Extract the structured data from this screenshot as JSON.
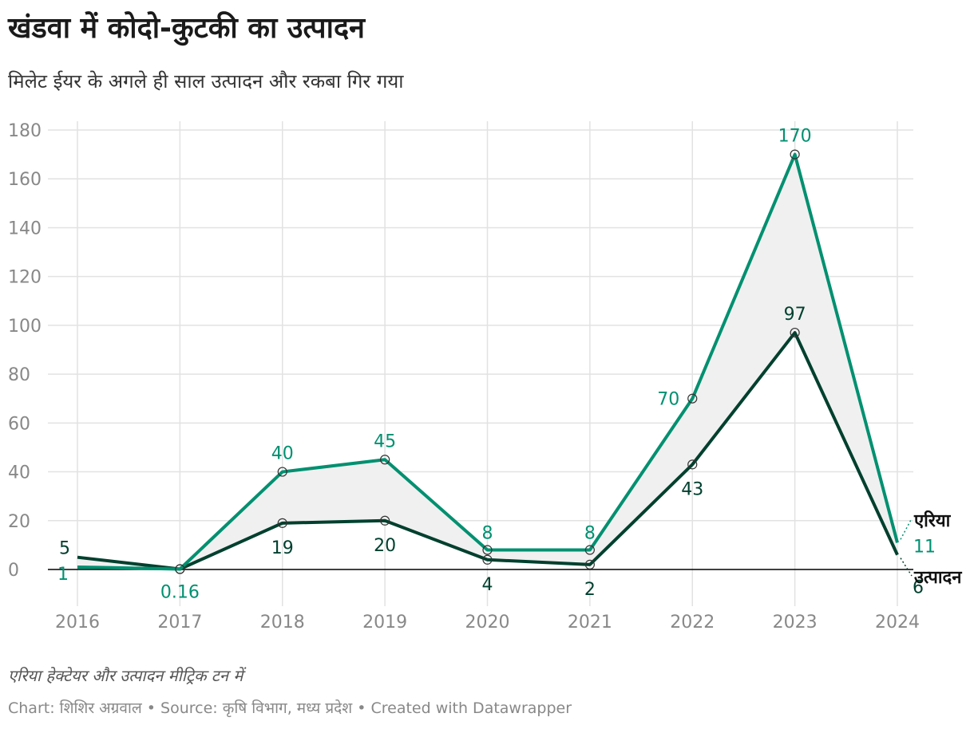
{
  "title": "खंडवा में कोदो-कुटकी का उत्पादन",
  "subtitle": "मिलेट ईयर के अगले ही साल उत्पादन और रकबा गिर गया",
  "note": "एरिया हेक्टेयर और उत्पादन मीट्रिक टन में",
  "credits": "Chart: शिशिर अग्रवाल • Source: कृषि विभाग, मध्य प्रदेश • Created with Datawrapper",
  "colors": {
    "area": "#009070",
    "production": "#00402e",
    "fill": "#f0f0f0",
    "grid": "#e2e2e2",
    "tick": "#888888"
  },
  "chart_data": {
    "type": "line",
    "x": [
      "2016",
      "2017",
      "2018",
      "2019",
      "2020",
      "2021",
      "2022",
      "2023",
      "2024"
    ],
    "ylim": [
      0,
      180
    ],
    "yticks": [
      "0",
      "20",
      "40",
      "60",
      "80",
      "100",
      "120",
      "140",
      "160",
      "180"
    ],
    "grid": true,
    "legend": "inline-right",
    "series": [
      {
        "name": "एरिया",
        "key": "area",
        "values": [
          1,
          0.16,
          40,
          45,
          8,
          8,
          70,
          170,
          11
        ],
        "labels": [
          "1",
          "0.16",
          "40",
          "45",
          "8",
          "8",
          "70",
          "170",
          "11"
        ]
      },
      {
        "name": "उत्पादन",
        "key": "production",
        "values": [
          5,
          0.16,
          19,
          20,
          4,
          2,
          43,
          97,
          6
        ],
        "labels": [
          "5",
          "",
          "19",
          "20",
          "4",
          "2",
          "43",
          "97",
          "6"
        ]
      }
    ]
  }
}
